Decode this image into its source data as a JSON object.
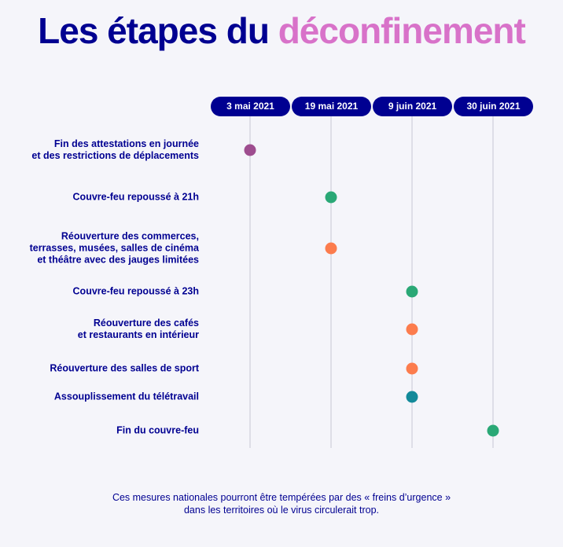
{
  "title": {
    "part1": "Les étapes du",
    "part2": "déconfinement"
  },
  "colors": {
    "navy": "#000091",
    "pink": "#d872c9",
    "purple": "#9e4d8f",
    "green": "#2aa876",
    "orange": "#fc7c4d",
    "teal": "#138a9a",
    "gridline": "#c8c8d4"
  },
  "chart_data": {
    "type": "timeline",
    "dates": [
      "3 mai 2021",
      "19 mai 2021",
      "9 juin 2021",
      "30 juin 2021"
    ],
    "events": [
      {
        "lines": [
          "Fin des attestations en journée",
          "et des restrictions de déplacements"
        ],
        "date": "3 mai 2021",
        "color": "purple"
      },
      {
        "lines": [
          "Couvre-feu repoussé à 21h"
        ],
        "date": "19 mai 2021",
        "color": "green"
      },
      {
        "lines": [
          "Réouverture des commerces,",
          "terrasses, musées, salles de cinéma",
          "et théâtre avec des jauges limitées"
        ],
        "date": "19 mai 2021",
        "color": "orange"
      },
      {
        "lines": [
          "Couvre-feu repoussé à 23h"
        ],
        "date": "9 juin 2021",
        "color": "green"
      },
      {
        "lines": [
          "Réouverture des cafés",
          "et restaurants en intérieur"
        ],
        "date": "9 juin 2021",
        "color": "orange"
      },
      {
        "lines": [
          "Réouverture des salles de sport"
        ],
        "date": "9 juin 2021",
        "color": "orange"
      },
      {
        "lines": [
          "Assouplissement du télétravail"
        ],
        "date": "9 juin 2021",
        "color": "teal"
      },
      {
        "lines": [
          "Fin du couvre-feu"
        ],
        "date": "30 juin 2021",
        "color": "green"
      }
    ]
  },
  "footnote": {
    "line1": "Ces mesures nationales pourront être tempérées par des « freins d’urgence »",
    "line2": "dans les territoires où le virus circulerait trop."
  }
}
